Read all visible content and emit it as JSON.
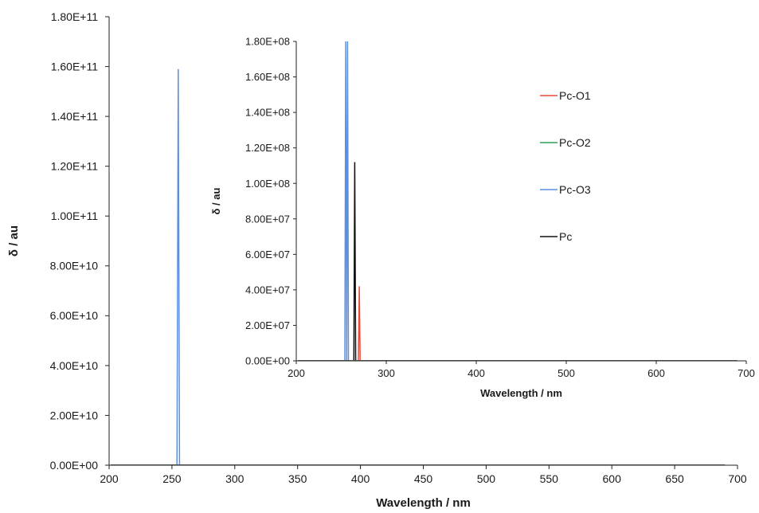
{
  "chart_data": [
    {
      "id": "main",
      "type": "bar",
      "title": "",
      "xlabel": "Wavelength / nm",
      "ylabel": "δ / au",
      "xlim": [
        200,
        700
      ],
      "ylim": [
        0,
        180000000000
      ],
      "x_ticks": [
        "200",
        "250",
        "300",
        "350",
        "400",
        "450",
        "500",
        "550",
        "600",
        "650",
        "700"
      ],
      "y_ticks": [
        "0.00E+00",
        "2.00E+10",
        "4.00E+10",
        "6.00E+10",
        "8.00E+10",
        "1.00E+11",
        "1.20E+11",
        "1.40E+11",
        "1.60E+11",
        "1.80E+11"
      ],
      "grid": false,
      "legend": "none",
      "series": [
        {
          "name": "Pc-O3",
          "color": "#5b8fe0",
          "points": [
            {
              "x": 254,
              "y": 0
            },
            {
              "x": 255,
              "y": 159000000000
            },
            {
              "x": 256,
              "y": 0
            }
          ]
        }
      ]
    },
    {
      "id": "inset",
      "type": "bar",
      "title": "",
      "xlabel": "Wavelength / nm",
      "ylabel": "δ / au",
      "xlim": [
        200,
        700
      ],
      "ylim": [
        0,
        180000000
      ],
      "x_ticks": [
        "200",
        "300",
        "400",
        "500",
        "600",
        "700"
      ],
      "y_ticks": [
        "0.00E+00",
        "2.00E+07",
        "4.00E+07",
        "6.00E+07",
        "8.00E+07",
        "1.00E+08",
        "1.20E+08",
        "1.40E+08",
        "1.60E+08",
        "1.80E+08"
      ],
      "grid": false,
      "legend": "right",
      "series": [
        {
          "name": "Pc-O1",
          "color": "#e64b3c",
          "points": [
            {
              "x": 269,
              "y": 0
            },
            {
              "x": 270,
              "y": 42000000
            },
            {
              "x": 271,
              "y": 0
            }
          ]
        },
        {
          "name": "Pc-O2",
          "color": "#2e9e5b",
          "points": []
        },
        {
          "name": "Pc-O3",
          "color": "#5b8fe0",
          "points": [
            {
              "x": 254,
              "y": 0
            },
            {
              "x": 255,
              "y": 180000000
            },
            {
              "x": 256,
              "y": 0
            },
            {
              "x": 257,
              "y": 180000000
            },
            {
              "x": 258,
              "y": 0
            }
          ]
        },
        {
          "name": "Pc",
          "color": "#111111",
          "points": [
            {
              "x": 264,
              "y": 0
            },
            {
              "x": 265,
              "y": 112000000
            },
            {
              "x": 266,
              "y": 0
            }
          ]
        }
      ]
    }
  ]
}
